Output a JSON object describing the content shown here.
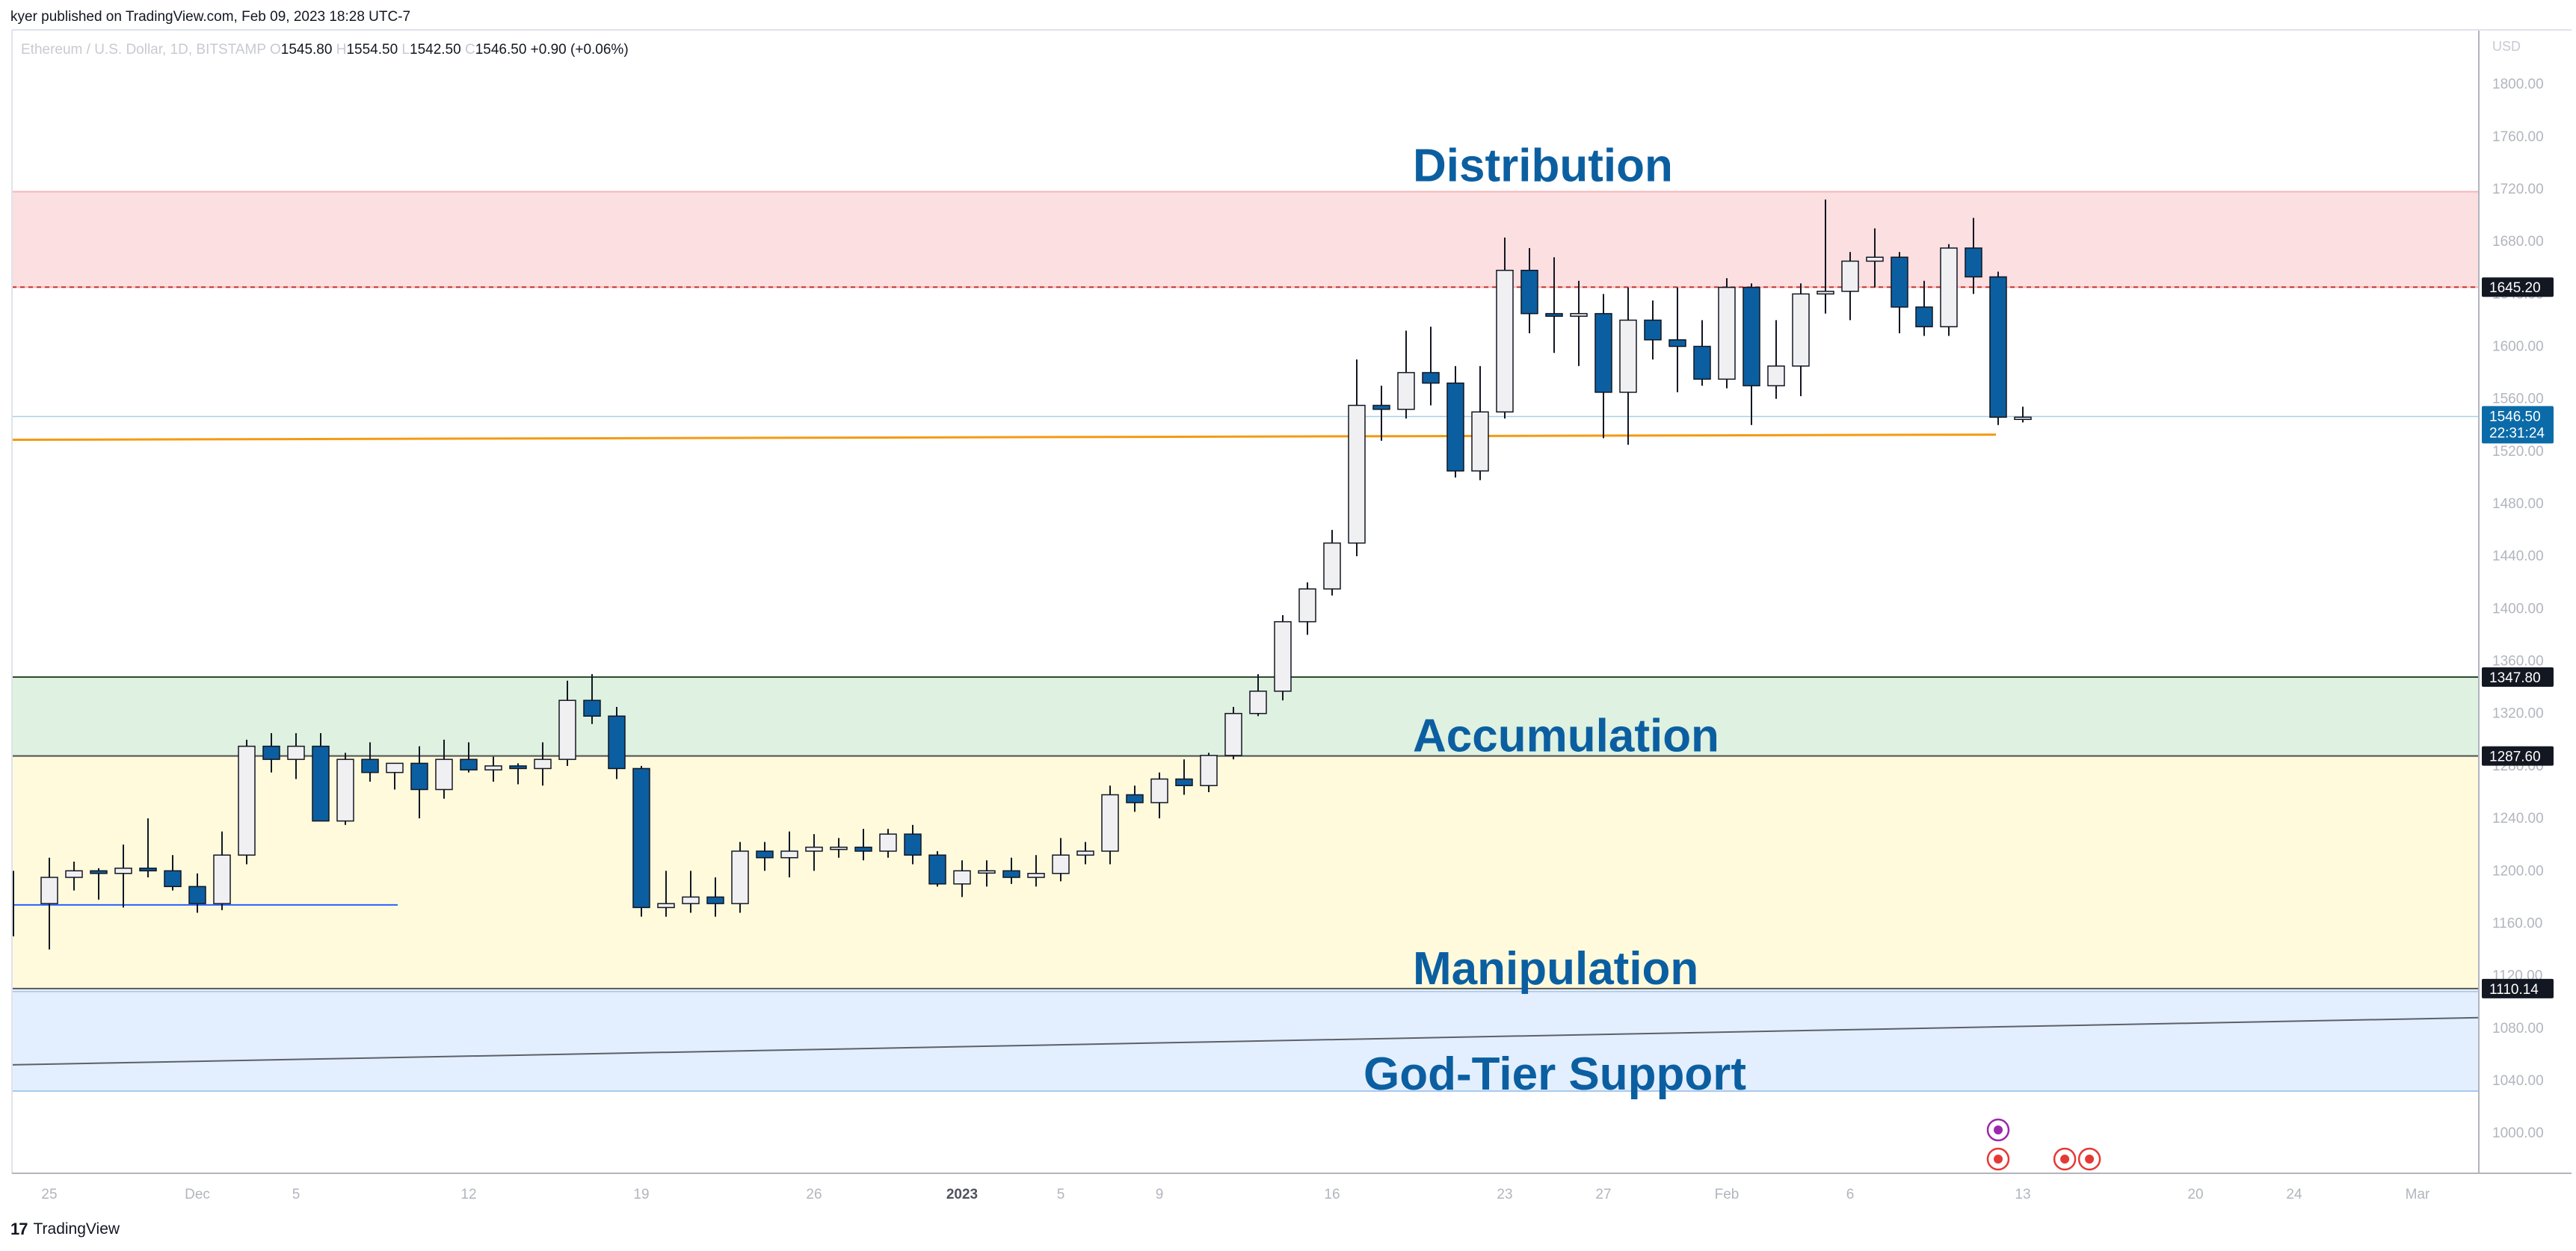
{
  "header": {
    "published": "kyer published on TradingView.com, Feb 09, 2023 18:28 UTC-7"
  },
  "symbol": {
    "name": "Ethereum / U.S. Dollar, 1D, BITSTAMP",
    "open_label": "O",
    "open": "1545.80",
    "high_label": "H",
    "high": "1554.50",
    "low_label": "L",
    "low": "1542.50",
    "close_label": "C",
    "close": "1546.50",
    "change": "+0.90 (+0.06%)"
  },
  "footer": {
    "brand": "TradingView",
    "logo": "17"
  },
  "colors": {
    "up_fill": "#f0f0f3",
    "down_fill": "#0b5fa1",
    "wick": "#131722",
    "distribution_zone": "#fcdfe1",
    "accumulation_zone": "#dff1e0",
    "manipulation_zone": "#fffadc",
    "support_zone": "#e3efff",
    "label_text": "#0b5fa1",
    "orange_line": "#f59a12"
  },
  "chart_data": {
    "type": "candlestick",
    "currency": "USD",
    "ylim": [
      975,
      1830
    ],
    "yticks": [
      1000,
      1040,
      1080,
      1120,
      1160,
      1200,
      1240,
      1280,
      1320,
      1360,
      1400,
      1440,
      1480,
      1520,
      1560,
      1600,
      1640,
      1680,
      1720,
      1760,
      1800
    ],
    "ytick_labels": [
      "1000.00",
      "1040.00",
      "1080.00",
      "1120.00",
      "1160.00",
      "1200.00",
      "1240.00",
      "1280.00",
      "1320.00",
      "1360.00",
      "1400.00",
      "1440.00",
      "1480.00",
      "1520.00",
      "1560.00",
      "1600.00",
      "1640.00",
      "1680.00",
      "1720.00",
      "1760.00",
      "1800.00"
    ],
    "xtick_labels": [
      {
        "label": "25",
        "i": 0
      },
      {
        "label": "Dec",
        "i": 6
      },
      {
        "label": "5",
        "i": 10
      },
      {
        "label": "12",
        "i": 17
      },
      {
        "label": "19",
        "i": 24
      },
      {
        "label": "26",
        "i": 31
      },
      {
        "label": "2023",
        "i": 37
      },
      {
        "label": "5",
        "i": 41
      },
      {
        "label": "9",
        "i": 45
      },
      {
        "label": "16",
        "i": 52
      },
      {
        "label": "23",
        "i": 59
      },
      {
        "label": "27",
        "i": 63
      },
      {
        "label": "Feb",
        "i": 68
      },
      {
        "label": "6",
        "i": 73
      },
      {
        "label": "13",
        "i": 80
      },
      {
        "label": "20",
        "i": 87
      },
      {
        "label": "24",
        "i": 91
      },
      {
        "label": "Mar",
        "i": 96
      }
    ],
    "candles": [
      [
        1175,
        1210,
        1140,
        1195
      ],
      [
        1195,
        1207,
        1185,
        1200
      ],
      [
        1200,
        1202,
        1178,
        1198
      ],
      [
        1198,
        1220,
        1172,
        1202
      ],
      [
        1202,
        1240,
        1195,
        1200
      ],
      [
        1200,
        1212,
        1185,
        1188
      ],
      [
        1188,
        1198,
        1168,
        1175
      ],
      [
        1175,
        1230,
        1170,
        1212
      ],
      [
        1212,
        1300,
        1205,
        1295
      ],
      [
        1295,
        1305,
        1275,
        1285
      ],
      [
        1285,
        1305,
        1270,
        1295
      ],
      [
        1295,
        1305,
        1240,
        1238
      ],
      [
        1238,
        1290,
        1235,
        1285
      ],
      [
        1285,
        1298,
        1268,
        1275
      ],
      [
        1275,
        1282,
        1262,
        1282
      ],
      [
        1282,
        1295,
        1240,
        1262
      ],
      [
        1262,
        1300,
        1255,
        1285
      ],
      [
        1285,
        1298,
        1275,
        1277
      ],
      [
        1277,
        1287,
        1268,
        1280
      ],
      [
        1280,
        1282,
        1266,
        1278
      ],
      [
        1278,
        1298,
        1265,
        1285
      ],
      [
        1285,
        1345,
        1280,
        1330
      ],
      [
        1330,
        1350,
        1312,
        1318
      ],
      [
        1318,
        1325,
        1270,
        1278
      ],
      [
        1278,
        1280,
        1165,
        1172
      ],
      [
        1172,
        1200,
        1165,
        1175
      ],
      [
        1175,
        1200,
        1168,
        1180
      ],
      [
        1180,
        1195,
        1165,
        1175
      ],
      [
        1175,
        1222,
        1168,
        1215
      ],
      [
        1215,
        1222,
        1200,
        1210
      ],
      [
        1210,
        1230,
        1195,
        1215
      ],
      [
        1215,
        1228,
        1200,
        1218
      ],
      [
        1218,
        1225,
        1210,
        1218
      ],
      [
        1218,
        1232,
        1208,
        1215
      ],
      [
        1215,
        1232,
        1210,
        1228
      ],
      [
        1228,
        1235,
        1205,
        1212
      ],
      [
        1212,
        1215,
        1188,
        1190
      ],
      [
        1190,
        1208,
        1180,
        1200
      ],
      [
        1200,
        1208,
        1188,
        1200
      ],
      [
        1200,
        1210,
        1190,
        1195
      ],
      [
        1195,
        1212,
        1188,
        1198
      ],
      [
        1198,
        1225,
        1192,
        1212
      ],
      [
        1212,
        1222,
        1205,
        1215
      ],
      [
        1215,
        1265,
        1205,
        1258
      ],
      [
        1258,
        1265,
        1245,
        1252
      ],
      [
        1252,
        1275,
        1240,
        1270
      ],
      [
        1270,
        1285,
        1258,
        1265
      ],
      [
        1265,
        1290,
        1260,
        1288
      ],
      [
        1288,
        1325,
        1285,
        1320
      ],
      [
        1320,
        1350,
        1318,
        1337
      ],
      [
        1337,
        1395,
        1330,
        1390
      ],
      [
        1390,
        1420,
        1380,
        1415
      ],
      [
        1415,
        1460,
        1410,
        1450
      ],
      [
        1450,
        1590,
        1440,
        1555
      ],
      [
        1555,
        1570,
        1528,
        1552
      ],
      [
        1552,
        1612,
        1545,
        1580
      ],
      [
        1580,
        1615,
        1555,
        1572
      ],
      [
        1572,
        1585,
        1500,
        1505
      ],
      [
        1505,
        1585,
        1498,
        1550
      ],
      [
        1550,
        1683,
        1545,
        1658
      ],
      [
        1658,
        1675,
        1610,
        1625
      ],
      [
        1625,
        1668,
        1595,
        1623
      ],
      [
        1623,
        1650,
        1585,
        1625
      ],
      [
        1625,
        1640,
        1530,
        1565
      ],
      [
        1565,
        1645,
        1525,
        1620
      ],
      [
        1620,
        1635,
        1590,
        1605
      ],
      [
        1605,
        1645,
        1565,
        1600
      ],
      [
        1600,
        1620,
        1570,
        1575
      ],
      [
        1575,
        1652,
        1568,
        1645
      ],
      [
        1645,
        1648,
        1540,
        1570
      ],
      [
        1570,
        1620,
        1560,
        1585
      ],
      [
        1585,
        1648,
        1562,
        1640
      ],
      [
        1640,
        1712,
        1625,
        1642
      ],
      [
        1642,
        1672,
        1620,
        1665
      ],
      [
        1665,
        1690,
        1645,
        1668
      ],
      [
        1668,
        1672,
        1610,
        1630
      ],
      [
        1630,
        1650,
        1608,
        1615
      ],
      [
        1615,
        1678,
        1608,
        1675
      ],
      [
        1675,
        1698,
        1640,
        1653
      ],
      [
        1653,
        1657,
        1540,
        1546
      ],
      [
        1546,
        1554,
        1542,
        1546
      ]
    ],
    "zones": [
      {
        "name": "Distribution",
        "from": 1645.2,
        "to": 1718
      },
      {
        "name": "Accumulation",
        "from": 1287.6,
        "to": 1347.8
      },
      {
        "name": "Manipulation",
        "from": 1110.14,
        "to": 1287.6
      },
      {
        "name": "God-Tier Support",
        "from": 1032,
        "to": 1108
      }
    ],
    "zone_labels": [
      "Distribution",
      "Accumulation",
      "Manipulation",
      "God-Tier Support"
    ],
    "price_labels": [
      {
        "value": 1645.2,
        "label": "1645.20"
      },
      {
        "value": 1347.8,
        "label": "1347.80"
      },
      {
        "value": 1287.6,
        "label": "1287.60"
      },
      {
        "value": 1110.14,
        "label": "1110.14"
      }
    ],
    "last_price": {
      "value": 1546.5,
      "label": "1546.50",
      "countdown": "22:31:24"
    },
    "horizontal_lines": [
      {
        "name": "orange-support",
        "value": 1531
      },
      {
        "name": "blue-line",
        "value": 1174
      }
    ],
    "trendline": {
      "from": 1052,
      "to": 1088
    }
  }
}
